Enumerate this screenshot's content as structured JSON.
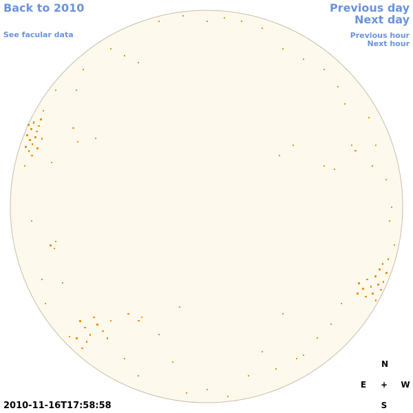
{
  "links": {
    "back": "Back to 2010",
    "facular": "See facular data",
    "previous_day": "Previous day",
    "next_day": "Next day",
    "previous_hour": "Previous hour",
    "next_hour": "Next hour"
  },
  "timestamp": "2010-11-16T17:58:58",
  "compass": {
    "north": "N",
    "east": "E",
    "center": "+",
    "west": "W",
    "south": "S"
  }
}
